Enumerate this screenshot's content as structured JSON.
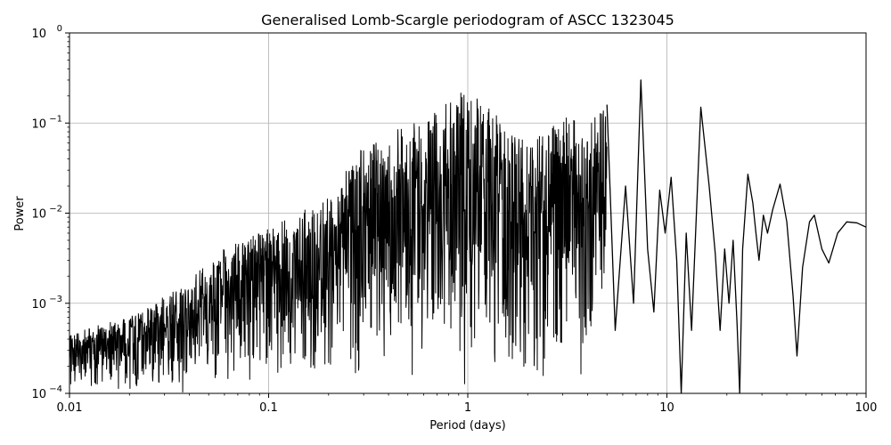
{
  "chart_data": {
    "type": "line",
    "title": "Generalised Lomb-Scargle periodogram of ASCC 1323045",
    "xlabel": "Period (days)",
    "ylabel": "Power",
    "xscale": "log",
    "yscale": "log",
    "xlim": [
      0.01,
      100
    ],
    "ylim": [
      0.0001,
      1
    ],
    "grid": true,
    "x_ticks": [
      {
        "value": 0.01,
        "label": "0.01"
      },
      {
        "value": 0.1,
        "label": "0.1"
      },
      {
        "value": 1,
        "label": "1"
      },
      {
        "value": 10,
        "label": "10"
      },
      {
        "value": 100,
        "label": "100"
      }
    ],
    "y_ticks": [
      {
        "value": 0.0001,
        "base": "10",
        "exp": "−4"
      },
      {
        "value": 0.001,
        "base": "10",
        "exp": "−3"
      },
      {
        "value": 0.01,
        "base": "10",
        "exp": "−2"
      },
      {
        "value": 0.1,
        "base": "10",
        "exp": "−1"
      },
      {
        "value": 1,
        "base": "10",
        "exp": "0"
      }
    ],
    "series": [
      {
        "color": "#000000",
        "envelope": [
          {
            "period": 0.01,
            "min": 0.0001,
            "max": 0.0005
          },
          {
            "period": 0.02,
            "min": 0.0001,
            "max": 0.0007
          },
          {
            "period": 0.035,
            "min": 0.0001,
            "max": 0.0015
          },
          {
            "period": 0.06,
            "min": 0.0001,
            "max": 0.004
          },
          {
            "period": 0.1,
            "min": 0.0001,
            "max": 0.007
          },
          {
            "period": 0.2,
            "min": 0.0001,
            "max": 0.015
          },
          {
            "period": 0.3,
            "min": 0.0001,
            "max": 0.06
          },
          {
            "period": 0.5,
            "min": 0.0001,
            "max": 0.1
          },
          {
            "period": 1,
            "min": 0.0001,
            "max": 0.25
          },
          {
            "period": 2,
            "min": 0.0001,
            "max": 0.06
          },
          {
            "period": 3,
            "min": 0.0001,
            "max": 0.12
          },
          {
            "period": 4,
            "min": 0.0001,
            "max": 0.1
          },
          {
            "period": 5,
            "min": 0.0003,
            "max": 0.16
          }
        ],
        "smooth_curve": [
          [
            5.0,
            0.16
          ],
          [
            5.5,
            0.0005
          ],
          [
            6.2,
            0.02
          ],
          [
            6.8,
            0.001
          ],
          [
            7.4,
            0.3
          ],
          [
            8.0,
            0.004
          ],
          [
            8.6,
            0.0008
          ],
          [
            9.2,
            0.018
          ],
          [
            9.8,
            0.006
          ],
          [
            10.5,
            0.025
          ],
          [
            11.2,
            0.003
          ],
          [
            11.8,
            0.0001
          ],
          [
            12.5,
            0.006
          ],
          [
            13.3,
            0.0005
          ],
          [
            14.8,
            0.15
          ],
          [
            16.3,
            0.02
          ],
          [
            17.5,
            0.0035
          ],
          [
            18.5,
            0.0005
          ],
          [
            19.5,
            0.004
          ],
          [
            20.5,
            0.001
          ],
          [
            21.5,
            0.005
          ],
          [
            22.5,
            0.0006
          ],
          [
            23.2,
            0.0001
          ],
          [
            24.0,
            0.004
          ],
          [
            25.5,
            0.027
          ],
          [
            27.0,
            0.013
          ],
          [
            28.0,
            0.006
          ],
          [
            29.0,
            0.003
          ],
          [
            30.5,
            0.0095
          ],
          [
            32.0,
            0.006
          ],
          [
            34.0,
            0.011
          ],
          [
            37.0,
            0.021
          ],
          [
            40.0,
            0.008
          ],
          [
            43.0,
            0.0012
          ],
          [
            45.0,
            0.00026
          ],
          [
            48.0,
            0.0025
          ],
          [
            52.0,
            0.008
          ],
          [
            55.0,
            0.0095
          ],
          [
            60.0,
            0.004
          ],
          [
            65.0,
            0.0028
          ],
          [
            72.0,
            0.006
          ],
          [
            80.0,
            0.008
          ],
          [
            90.0,
            0.0078
          ],
          [
            100.0,
            0.007
          ]
        ]
      }
    ]
  }
}
